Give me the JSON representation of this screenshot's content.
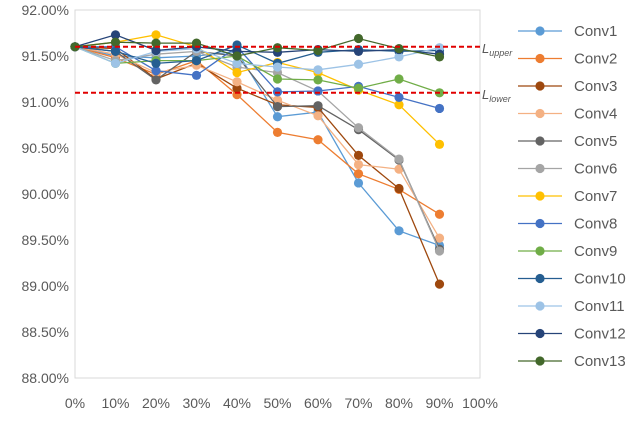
{
  "chart_data": {
    "type": "line",
    "title": "",
    "xlabel": "",
    "ylabel": "",
    "x": [
      0,
      10,
      20,
      30,
      40,
      50,
      60,
      70,
      80,
      90
    ],
    "x_tick_labels": [
      "0%",
      "10%",
      "20%",
      "30%",
      "40%",
      "50%",
      "60%",
      "70%",
      "80%",
      "90%",
      "100%"
    ],
    "xlim": [
      0,
      100
    ],
    "ylim": [
      88.0,
      92.0
    ],
    "y_ticks": [
      88.0,
      88.5,
      89.0,
      89.5,
      90.0,
      90.5,
      91.0,
      91.5,
      92.0
    ],
    "y_tick_labels": [
      "88.00%",
      "88.50%",
      "89.00%",
      "89.50%",
      "90.00%",
      "90.50%",
      "91.00%",
      "91.50%",
      "92.00%"
    ],
    "grid": "none",
    "legend_position": "right",
    "reference_lines": [
      {
        "label": "upper",
        "prefix": "L",
        "value": 91.6,
        "color": "#e00000"
      },
      {
        "label": "lower",
        "prefix": "L",
        "value": 91.1,
        "color": "#e00000"
      }
    ],
    "series": [
      {
        "name": "Conv1",
        "color": "#5b9bd5",
        "values": [
          91.6,
          91.5,
          91.48,
          91.5,
          91.55,
          90.84,
          90.89,
          90.12,
          89.6,
          89.44
        ]
      },
      {
        "name": "Conv2",
        "color": "#ed7d31",
        "values": [
          91.6,
          91.48,
          91.3,
          91.45,
          91.08,
          90.67,
          90.59,
          90.22,
          90.05,
          89.78
        ]
      },
      {
        "name": "Conv3",
        "color": "#9e480e",
        "values": [
          91.6,
          91.58,
          91.25,
          91.42,
          91.15,
          90.97,
          90.94,
          90.42,
          90.06,
          89.02
        ]
      },
      {
        "name": "Conv4",
        "color": "#f4b183",
        "values": [
          91.6,
          91.52,
          91.32,
          91.4,
          91.22,
          91.02,
          90.85,
          90.32,
          90.27,
          89.52
        ]
      },
      {
        "name": "Conv5",
        "color": "#636363",
        "values": [
          91.6,
          91.55,
          91.24,
          91.55,
          91.5,
          90.95,
          90.96,
          90.7,
          90.37,
          89.4
        ]
      },
      {
        "name": "Conv6",
        "color": "#a5a5a5",
        "values": [
          91.6,
          91.45,
          91.52,
          91.55,
          91.38,
          91.32,
          91.12,
          90.72,
          90.38,
          89.38
        ]
      },
      {
        "name": "Conv7",
        "color": "#ffc000",
        "values": [
          91.6,
          91.65,
          91.73,
          91.6,
          91.32,
          91.43,
          91.32,
          91.13,
          90.97,
          90.54
        ]
      },
      {
        "name": "Conv8",
        "color": "#4472c4",
        "values": [
          91.6,
          91.6,
          91.34,
          91.29,
          91.6,
          91.11,
          91.12,
          91.17,
          91.05,
          90.93
        ]
      },
      {
        "name": "Conv9",
        "color": "#70ad47",
        "values": [
          91.6,
          91.42,
          91.45,
          91.45,
          91.5,
          91.25,
          91.24,
          91.15,
          91.25,
          91.1
        ]
      },
      {
        "name": "Conv10",
        "color": "#255e91",
        "values": [
          91.6,
          91.55,
          91.42,
          91.45,
          91.62,
          91.42,
          91.54,
          91.57,
          91.55,
          91.56
        ]
      },
      {
        "name": "Conv11",
        "color": "#9dc3e6",
        "values": [
          91.6,
          91.42,
          91.55,
          91.58,
          91.42,
          91.38,
          91.35,
          91.41,
          91.49,
          91.59
        ]
      },
      {
        "name": "Conv12",
        "color": "#264478",
        "values": [
          91.6,
          91.73,
          91.56,
          91.6,
          91.55,
          91.54,
          91.57,
          91.55,
          91.57,
          91.52
        ]
      },
      {
        "name": "Conv13",
        "color": "#43682b",
        "values": [
          91.6,
          91.65,
          91.64,
          91.64,
          91.5,
          91.59,
          91.56,
          91.69,
          91.58,
          91.49
        ]
      }
    ]
  }
}
